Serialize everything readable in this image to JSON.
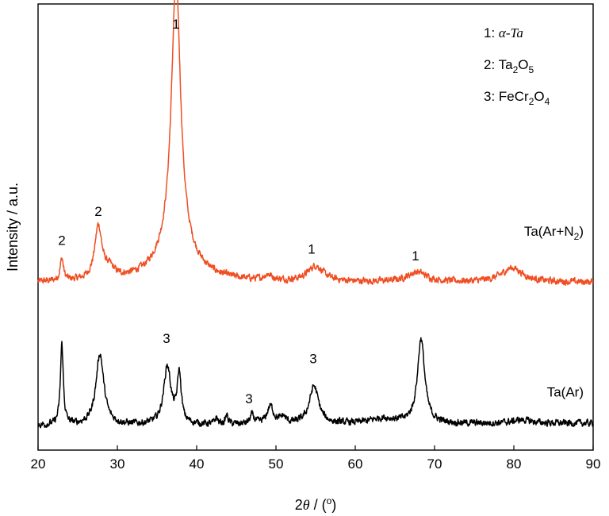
{
  "chart_data": {
    "type": "line",
    "title": "",
    "xlabel": "2θ / (°)",
    "xlabel_parts": {
      "num": "2",
      "theta": "θ",
      "rest": " / (",
      "deg": "o",
      "close": ")"
    },
    "ylabel": "Intensity / a.u.",
    "xlim": [
      20,
      90
    ],
    "ylim": [
      0,
      1
    ],
    "x_ticks": [
      "20",
      "30",
      "40",
      "50",
      "60",
      "70",
      "80",
      "90"
    ],
    "grid": false,
    "legend": {
      "placement": "top-right",
      "items": [
        {
          "num": "1",
          "text": "α-Ta"
        },
        {
          "num": "2",
          "text": "Ta2O5"
        },
        {
          "num": "3",
          "text": "FeCr2O4"
        }
      ]
    },
    "series": [
      {
        "name": "Ta(Ar+N2)",
        "color": "#f04e23",
        "baseline": 0.375,
        "end_level": 0.376,
        "peaks": [
          {
            "x": 23.0,
            "h": 0.05,
            "w": 0.25
          },
          {
            "x": 27.6,
            "h": 0.118,
            "w": 0.55
          },
          {
            "x": 29.0,
            "h": 0.02,
            "w": 0.8
          },
          {
            "x": 37.4,
            "h": 0.61,
            "w": 0.7
          },
          {
            "x": 37.4,
            "h": 0.07,
            "w": 2.8
          },
          {
            "x": 49.0,
            "h": 0.012,
            "w": 0.6
          },
          {
            "x": 55.0,
            "h": 0.035,
            "w": 1.2
          },
          {
            "x": 67.8,
            "h": 0.022,
            "w": 1.5
          },
          {
            "x": 79.8,
            "h": 0.032,
            "w": 1.6
          }
        ]
      },
      {
        "name": "Ta(Ar)",
        "color": "#000000",
        "baseline": 0.055,
        "end_level": 0.06,
        "peaks": [
          {
            "x": 23.0,
            "h": 0.18,
            "w": 0.22
          },
          {
            "x": 27.8,
            "h": 0.16,
            "w": 0.6
          },
          {
            "x": 36.3,
            "h": 0.13,
            "w": 0.55
          },
          {
            "x": 37.8,
            "h": 0.11,
            "w": 0.3
          },
          {
            "x": 42.5,
            "h": 0.015,
            "w": 0.2
          },
          {
            "x": 43.8,
            "h": 0.02,
            "w": 0.2
          },
          {
            "x": 47.0,
            "h": 0.02,
            "w": 0.3
          },
          {
            "x": 49.3,
            "h": 0.04,
            "w": 0.5
          },
          {
            "x": 50.9,
            "h": 0.015,
            "w": 0.4
          },
          {
            "x": 54.8,
            "h": 0.085,
            "w": 0.7
          },
          {
            "x": 63.5,
            "h": 0.012,
            "w": 2.0
          },
          {
            "x": 68.3,
            "h": 0.19,
            "w": 0.55
          },
          {
            "x": 81.0,
            "h": 0.008,
            "w": 1.5
          }
        ]
      }
    ],
    "peak_labels": [
      {
        "text": "1",
        "x": 37.4,
        "y": 0.945
      },
      {
        "text": "2",
        "x": 23.0,
        "y": 0.46
      },
      {
        "text": "2",
        "x": 27.6,
        "y": 0.525
      },
      {
        "text": "1",
        "x": 54.5,
        "y": 0.44
      },
      {
        "text": "1",
        "x": 67.6,
        "y": 0.425
      },
      {
        "text": "3",
        "x": 36.2,
        "y": 0.24
      },
      {
        "text": "3",
        "x": 46.6,
        "y": 0.105
      },
      {
        "text": "3",
        "x": 54.7,
        "y": 0.195
      }
    ],
    "series_labels": [
      {
        "text_main": "Ta(Ar+N",
        "sub": "2",
        "close": ")",
        "x": 88.8,
        "y": 0.48
      },
      {
        "text_main": "Ta(Ar)",
        "sub": "",
        "close": "",
        "x": 88.8,
        "y": 0.12
      }
    ]
  }
}
